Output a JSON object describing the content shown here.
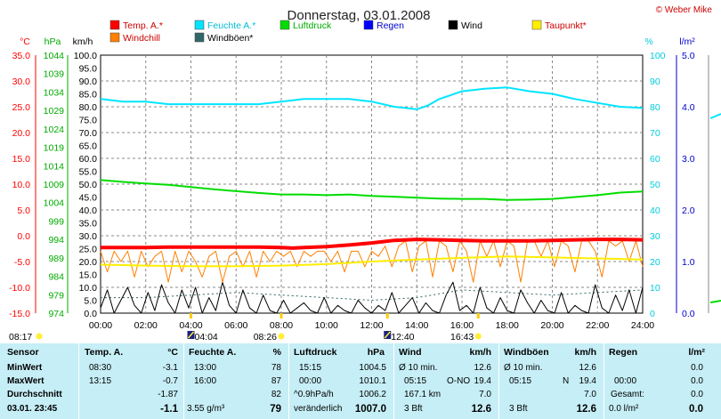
{
  "chart_data": {
    "type": "line",
    "title": "Donnerstag, 03.01.2008",
    "copyright": "© Weber Mike",
    "x_ticks": [
      "00:00",
      "02:00",
      "04:00",
      "06:00",
      "08:00",
      "10:00",
      "12:00",
      "14:00",
      "16:00",
      "18:00",
      "20:00",
      "22:00",
      "24:00"
    ],
    "x_range_hours": [
      0,
      24
    ],
    "grid": true,
    "legend": [
      {
        "name": "Temp. A.*",
        "color": "#ff0000"
      },
      {
        "name": "Feuchte A.*",
        "color": "#00e5ff"
      },
      {
        "name": "Luftdruck",
        "color": "#00dd00"
      },
      {
        "name": "Regen",
        "color": "#0000ff"
      },
      {
        "name": "Wind",
        "color": "#000000"
      },
      {
        "name": "Taupunkt*",
        "color": "#ffee00"
      },
      {
        "name": "Windchill",
        "color": "#ff7f00"
      },
      {
        "name": "Windböen*",
        "color": "#336666"
      }
    ],
    "axes": {
      "temp": {
        "unit": "°C",
        "color": "#ff0000",
        "min": -15,
        "max": 35,
        "ticks": [
          "35.0",
          "30.0",
          "25.0",
          "20.0",
          "15.0",
          "10.0",
          "5.0",
          "0.0",
          "-5.0",
          "-10.0",
          "-15.0"
        ]
      },
      "pressure": {
        "unit": "hPa",
        "color": "#00aa00",
        "min": 974,
        "max": 1044,
        "ticks": [
          "1044",
          "1039",
          "1034",
          "1029",
          "1024",
          "1019",
          "1014",
          "1009",
          "1004",
          "999",
          "994",
          "989",
          "984",
          "979",
          "974"
        ]
      },
      "wind": {
        "unit": "km/h",
        "color": "#000000",
        "min": 0,
        "max": 100,
        "ticks": [
          "100.0",
          "95.0",
          "90.0",
          "85.0",
          "80.0",
          "75.0",
          "70.0",
          "65.0",
          "60.0",
          "55.0",
          "50.0",
          "45.0",
          "40.0",
          "35.0",
          "30.0",
          "25.0",
          "20.0",
          "15.0",
          "10.0",
          "5.0",
          "0.0"
        ]
      },
      "humidity": {
        "unit": "%",
        "color": "#00ccdd",
        "min": 0,
        "max": 100,
        "ticks": [
          "100",
          "90",
          "80",
          "70",
          "60",
          "50",
          "40",
          "30",
          "20",
          "10",
          "0"
        ]
      },
      "rain": {
        "unit": "l/m²",
        "color": "#0000cc",
        "min": 0,
        "max": 5,
        "ticks": [
          "5.0",
          "4.0",
          "3.0",
          "2.0",
          "1.0",
          "0.0"
        ]
      }
    },
    "series": [
      {
        "name": "Feuchte A.*",
        "axis": "humidity",
        "color": "#00e5ff",
        "x": [
          0,
          1,
          2,
          3,
          4,
          5,
          6,
          7,
          8,
          9,
          10,
          11,
          12,
          13,
          13.5,
          14,
          14.5,
          15,
          16,
          17,
          18,
          19,
          20,
          21,
          22,
          23,
          24
        ],
        "y": [
          83,
          82,
          82,
          81,
          81,
          81,
          81,
          81,
          82,
          83,
          83,
          83,
          82,
          80,
          79.5,
          79,
          80.5,
          83,
          86,
          87,
          87.5,
          86,
          85,
          83,
          81.5,
          80,
          79.5
        ]
      },
      {
        "name": "Luftdruck",
        "axis": "pressure",
        "color": "#00dd00",
        "x": [
          0,
          1,
          2,
          3,
          4,
          5,
          6,
          7,
          8,
          9,
          10,
          11,
          12,
          13,
          14,
          15,
          16,
          17,
          18,
          19,
          20,
          21,
          22,
          23,
          24
        ],
        "y": [
          1010.1,
          1009.6,
          1009.2,
          1008.8,
          1008.2,
          1007.6,
          1007.1,
          1006.6,
          1006.2,
          1006.2,
          1006.0,
          1006.2,
          1005.8,
          1005.6,
          1005.3,
          1005.1,
          1005.0,
          1005.0,
          1004.7,
          1004.8,
          1005.0,
          1005.5,
          1006.0,
          1006.7,
          1007.0
        ]
      },
      {
        "name": "Temp. A.*",
        "axis": "temp",
        "color": "#ff0000",
        "x": [
          0,
          1,
          2,
          3,
          4,
          5,
          6,
          7,
          8,
          8.5,
          9,
          10,
          11,
          12,
          13,
          14,
          15,
          16,
          17,
          18,
          19,
          20,
          21,
          22,
          23,
          24
        ],
        "y": [
          -2.3,
          -2.3,
          -2.3,
          -2.2,
          -2.2,
          -2.2,
          -2.2,
          -2.2,
          -2.3,
          -2.4,
          -2.3,
          -2.1,
          -1.8,
          -1.4,
          -0.9,
          -0.7,
          -0.8,
          -0.9,
          -1.0,
          -1.0,
          -1.0,
          -0.9,
          -0.8,
          -0.7,
          -0.7,
          -0.8
        ]
      },
      {
        "name": "Taupunkt*",
        "axis": "temp",
        "color": "#ffee00",
        "x": [
          0,
          2,
          4,
          6,
          8,
          10,
          12,
          14,
          16,
          18,
          20,
          22,
          24
        ],
        "y": [
          -5.6,
          -5.8,
          -5.9,
          -5.9,
          -5.8,
          -5.5,
          -5.0,
          -4.6,
          -4.3,
          -4.0,
          -4.2,
          -4.4,
          -4.6
        ]
      },
      {
        "name": "Windchill",
        "axis": "temp",
        "color": "#ff7f00",
        "x": [
          0,
          0.3,
          0.6,
          0.9,
          1.2,
          1.5,
          1.8,
          2.1,
          2.4,
          2.7,
          3,
          3.3,
          3.6,
          3.9,
          4.2,
          4.5,
          4.8,
          5.1,
          5.4,
          5.7,
          6,
          6.3,
          6.6,
          6.9,
          7.2,
          7.5,
          7.8,
          8.1,
          8.4,
          8.7,
          9,
          9.3,
          9.6,
          9.9,
          10.2,
          10.5,
          10.8,
          11.1,
          11.4,
          11.7,
          12,
          12.3,
          12.6,
          12.9,
          13.2,
          13.5,
          13.8,
          14.1,
          14.4,
          14.7,
          15,
          15.3,
          15.6,
          15.9,
          16.2,
          16.5,
          16.8,
          17.1,
          17.4,
          17.7,
          18,
          18.3,
          18.6,
          18.9,
          19.2,
          19.5,
          19.8,
          20.1,
          20.4,
          20.7,
          21,
          21.3,
          21.6,
          21.9,
          22.2,
          22.5,
          22.8,
          23.1,
          23.4,
          23.7,
          24
        ],
        "y": [
          -3,
          -7,
          -3,
          -5,
          -3,
          -8,
          -3,
          -6,
          -4,
          -3,
          -9,
          -3,
          -7,
          -3,
          -5,
          -8,
          -4,
          -3,
          -9,
          -4,
          -3,
          -6,
          -3,
          -8,
          -3,
          -5,
          -3,
          -4,
          -3,
          -6,
          -3,
          -4,
          -3,
          -3,
          -5,
          -3,
          -7,
          -3,
          -3,
          -6,
          -3,
          -4,
          -2,
          -6,
          -2,
          -1,
          -7,
          -2,
          -1,
          -8,
          -1,
          -2,
          -7,
          -1,
          -3,
          -9,
          -1,
          -4,
          -1,
          -6,
          -1,
          -2,
          -9,
          -1,
          -1,
          -4,
          -1,
          -6,
          -1,
          -2,
          -7,
          -1,
          -1,
          -3,
          -8,
          -1,
          -2,
          -1,
          -5,
          -1,
          -6
        ]
      },
      {
        "name": "Wind",
        "axis": "wind",
        "color": "#000000",
        "x": [
          0,
          0.3,
          0.6,
          0.9,
          1.2,
          1.5,
          1.8,
          2.1,
          2.4,
          2.7,
          3,
          3.3,
          3.6,
          3.9,
          4.2,
          4.5,
          4.8,
          5.1,
          5.4,
          5.7,
          6,
          6.3,
          6.6,
          6.9,
          7.2,
          7.5,
          7.8,
          8.1,
          8.4,
          8.7,
          9,
          9.3,
          9.6,
          9.9,
          10.2,
          10.5,
          10.8,
          11.1,
          11.4,
          11.7,
          12,
          12.3,
          12.6,
          12.9,
          13.2,
          13.5,
          13.8,
          14.1,
          14.4,
          14.7,
          15,
          15.3,
          15.6,
          15.9,
          16.2,
          16.5,
          16.8,
          17.1,
          17.4,
          17.7,
          18,
          18.3,
          18.6,
          18.9,
          19.2,
          19.5,
          19.8,
          20.1,
          20.4,
          20.7,
          21,
          21.3,
          21.6,
          21.9,
          22.2,
          22.5,
          22.8,
          23.1,
          23.4,
          23.7,
          24
        ],
        "y": [
          2,
          9,
          0,
          5,
          10,
          3,
          0,
          8,
          1,
          11,
          4,
          0,
          9,
          2,
          10,
          0,
          6,
          1,
          12,
          3,
          0,
          9,
          2,
          0,
          7,
          1,
          0,
          5,
          0,
          2,
          4,
          1,
          0,
          6,
          0,
          3,
          1,
          0,
          5,
          2,
          0,
          3,
          1,
          8,
          0,
          3,
          6,
          0,
          4,
          1,
          0,
          7,
          12,
          1,
          3,
          0,
          10,
          2,
          0,
          6,
          1,
          0,
          9,
          4,
          0,
          5,
          1,
          0,
          8,
          0,
          3,
          1,
          0,
          11,
          2,
          0,
          7,
          1,
          9,
          0,
          10
        ]
      },
      {
        "name": "Windböen*",
        "axis": "wind",
        "color": "#336666",
        "dashed": true,
        "x": [
          0,
          2,
          4,
          6,
          8,
          10,
          12,
          14,
          16,
          18,
          20,
          22,
          24
        ],
        "y": [
          6,
          6,
          7,
          8,
          7,
          6,
          5,
          6,
          9,
          8,
          7,
          8,
          9
        ]
      }
    ],
    "markers": [
      {
        "label": "08:17",
        "hour": 0,
        "type": "sunrise"
      },
      {
        "label": "04:04",
        "hour": 4,
        "type": "moon"
      },
      {
        "label": "08:26",
        "hour": 8,
        "type": "sun"
      },
      {
        "label": "12:40",
        "hour": 12.7,
        "type": "moon"
      },
      {
        "label": "16:43",
        "hour": 16.72,
        "type": "sunset"
      }
    ]
  },
  "stats": {
    "sensor": {
      "title": "Sensor",
      "rows": [
        "MinWert",
        "MaxWert",
        "Durchschnitt",
        "03.01. 23:45"
      ]
    },
    "temp": {
      "title": "Temp. A.",
      "unit": "°C",
      "rows": [
        [
          "08:30",
          "-3.1"
        ],
        [
          "13:15",
          "-0.7"
        ],
        [
          "",
          "-1.87"
        ],
        [
          "",
          "-1.1"
        ]
      ]
    },
    "humidity": {
      "title": "Feuchte A.",
      "unit": "%",
      "rows": [
        [
          "13:00",
          "78"
        ],
        [
          "16:00",
          "87"
        ],
        [
          "",
          "82"
        ],
        [
          "3.55 g/m³",
          "79"
        ]
      ]
    },
    "pressure": {
      "title": "Luftdruck",
      "unit": "hPa",
      "rows": [
        [
          "15:15",
          "1004.5"
        ],
        [
          "00:00",
          "1010.1"
        ],
        [
          "^0.9hPa/h",
          "1006.2"
        ],
        [
          "veränderlich",
          "1007.0"
        ]
      ]
    },
    "wind": {
      "title": "Wind",
      "unit": "km/h",
      "rows": [
        [
          "Ø 10 min.",
          "",
          "12.6"
        ],
        [
          "05:15",
          "O-NO",
          "19.4"
        ],
        [
          "167.1 km",
          "",
          "7.0"
        ],
        [
          "3 Bft",
          "",
          "12.6"
        ]
      ]
    },
    "gust": {
      "title": "Windböen",
      "unit": "km/h",
      "rows": [
        [
          "Ø 10 min.",
          "",
          "12.6"
        ],
        [
          "05:15",
          "N",
          "19.4"
        ],
        [
          "",
          "",
          "7.0"
        ],
        [
          "3 Bft",
          "",
          "12.6"
        ]
      ]
    },
    "rain": {
      "title": "Regen",
      "unit": "l/m²",
      "rows": [
        [
          "",
          "0.0"
        ],
        [
          "00:00",
          "0.0"
        ],
        [
          "Gesamt:",
          "0.0"
        ],
        [
          "0.0 l/m²",
          "0.0"
        ]
      ]
    }
  }
}
